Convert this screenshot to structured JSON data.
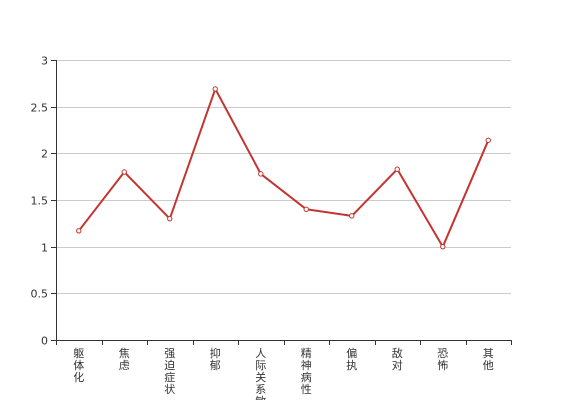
{
  "chart_data": {
    "type": "line",
    "title": "",
    "xlabel": "",
    "ylabel": "",
    "categories": [
      "躯体化",
      "焦虑",
      "强迫症状",
      "抑郁",
      "人际关系敏感",
      "精神病性",
      "偏执",
      "敌对",
      "恐怖",
      "其他"
    ],
    "values": [
      1.17,
      1.8,
      1.3,
      2.69,
      1.78,
      1.4,
      1.33,
      1.83,
      1.0,
      2.14
    ],
    "ylim": [
      0,
      3
    ],
    "yticks": [
      "0",
      "0.5",
      "1",
      "1.5",
      "2",
      "2.5",
      "3"
    ],
    "grid": true,
    "legend": "none",
    "colors": {
      "line": "#c23531",
      "grid": "#cccccc",
      "axis": "#333333",
      "marker_fill": "#ffffff"
    }
  }
}
